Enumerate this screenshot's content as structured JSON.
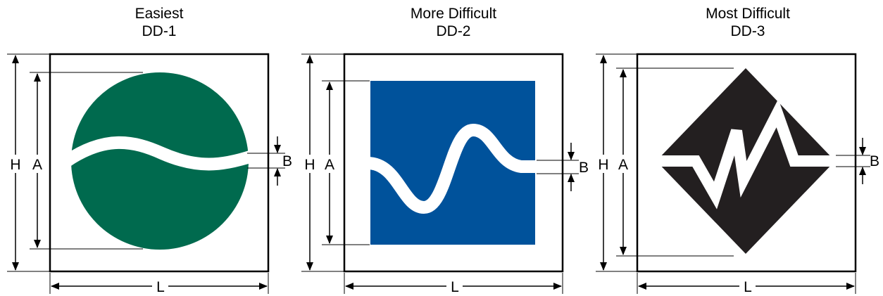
{
  "signs": [
    {
      "title": "Easiest",
      "code": "DD-1",
      "shape": "circle",
      "color": "#006a4e"
    },
    {
      "title": "More Difficult",
      "code": "DD-2",
      "shape": "square",
      "color": "#00529b"
    },
    {
      "title": "Most Difficult",
      "code": "DD-3",
      "shape": "diamond",
      "color": "#231f20"
    }
  ],
  "labels": {
    "h": "H",
    "a": "A",
    "b": "B",
    "l": "L"
  }
}
